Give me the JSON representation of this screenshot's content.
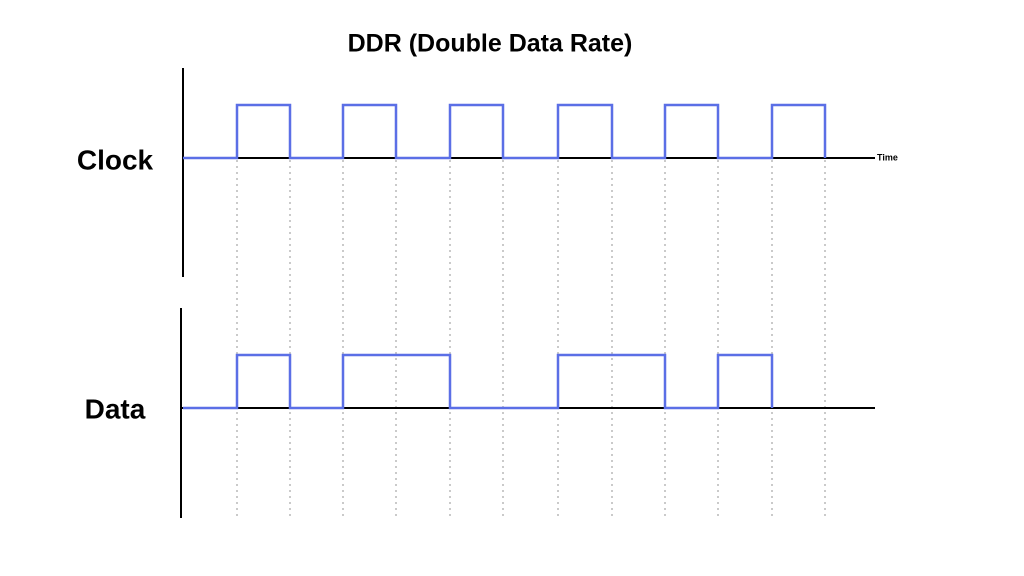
{
  "title": "DDR (Double Data Rate)",
  "signals": [
    {
      "label": "Clock"
    },
    {
      "label": "Data"
    }
  ],
  "axis_label": "Time"
}
